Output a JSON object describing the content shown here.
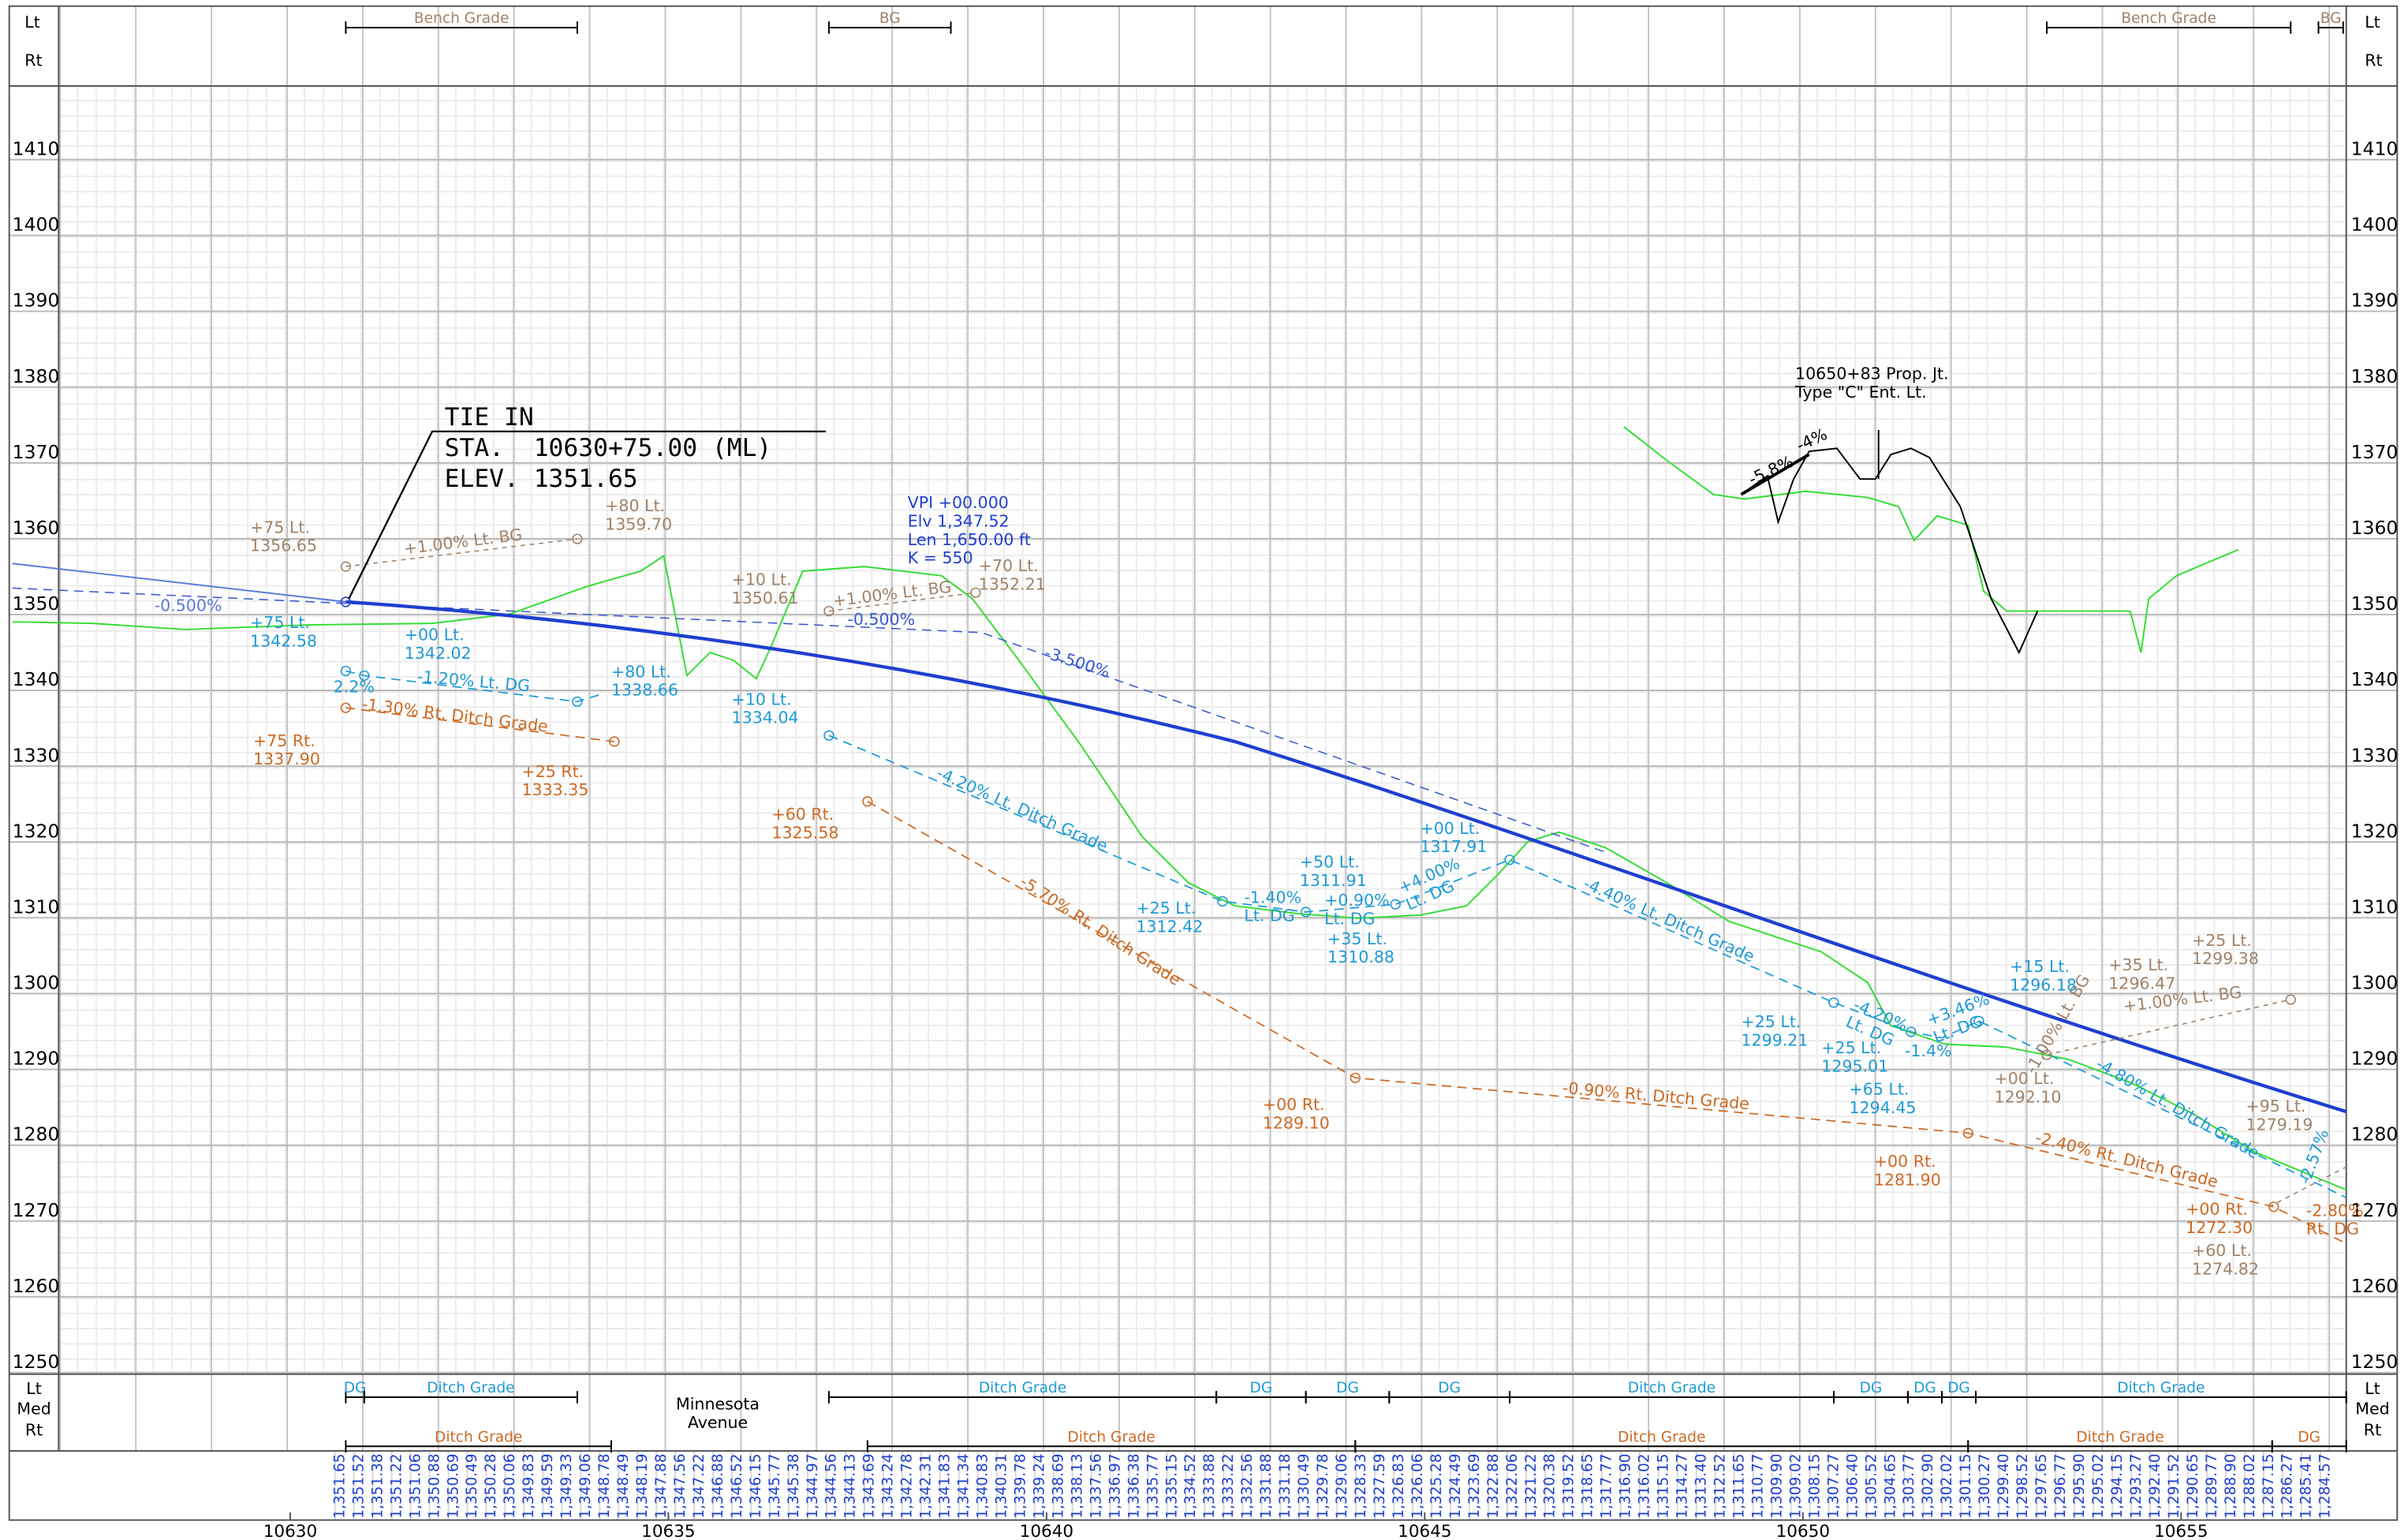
{
  "axis": {
    "elevations": [
      1410,
      1400,
      1390,
      1380,
      1370,
      1360,
      1350,
      1340,
      1330,
      1320,
      1310,
      1300,
      1290,
      1280,
      1270,
      1260,
      1250
    ],
    "stations": [
      10630,
      10635,
      10640,
      10645,
      10650,
      10655
    ]
  },
  "top_band": {
    "side": [
      "Lt",
      "Rt"
    ],
    "labels": [
      "Bench Grade",
      "BG",
      "Bench Grade",
      "BG"
    ],
    "color": "#a0826a"
  },
  "bottom_band": {
    "side": [
      "Lt",
      "Med",
      "Rt"
    ],
    "lt_labels": [
      "DG",
      "Ditch Grade",
      "Ditch Grade",
      "DG",
      "DG",
      "DG",
      "Ditch Grade",
      "DG",
      "DG",
      "DG",
      "Ditch Grade"
    ],
    "lt_color": "#1f9ad6",
    "rt_labels": [
      "Ditch Grade",
      "Ditch Grade",
      "Ditch Grade",
      "Ditch Grade",
      "DG"
    ],
    "rt_color": "#cc6a24"
  },
  "street": [
    "Minnesota",
    "Avenue"
  ],
  "tie_in": [
    "TIE IN",
    "STA.  10630+75.00 (ML)",
    "ELEV. 1351.65"
  ],
  "annotations": [
    {
      "lines": [
        "+75 Lt.",
        "1356.65"
      ],
      "color": "#a0826a"
    },
    {
      "lines": [
        "+80 Lt.",
        "1359.70"
      ],
      "color": "#a0826a"
    },
    {
      "lines": [
        "+1.00% Lt. BG"
      ],
      "color": "#a0826a"
    },
    {
      "lines": [
        "+10 Lt.",
        "1350.61"
      ],
      "color": "#a0826a"
    },
    {
      "lines": [
        "+1.00% Lt. BG"
      ],
      "color": "#a0826a"
    },
    {
      "lines": [
        "+70 Lt.",
        "1352.21"
      ],
      "color": "#a0826a"
    },
    {
      "lines": [
        "+35 Lt.",
        "1296.47"
      ],
      "color": "#a0826a"
    },
    {
      "lines": [
        "+25 Lt.",
        "1299.38"
      ],
      "color": "#a0826a"
    },
    {
      "lines": [
        "+1.00% Lt. BG"
      ],
      "color": "#a0826a"
    },
    {
      "lines": [
        "+00 Lt.",
        "1292.10"
      ],
      "color": "#a0826a"
    },
    {
      "lines": [
        "+95 Lt.",
        "1279.19"
      ],
      "color": "#a0826a"
    },
    {
      "lines": [
        "+60 Lt.",
        "1274.82"
      ],
      "color": "#a0826a"
    },
    {
      "lines": [
        "-1.00% Lt. BG"
      ],
      "color": "#a0826a"
    },
    {
      "lines": [
        "-0.500%"
      ],
      "color": "#5a7ad6"
    },
    {
      "lines": [
        "-0.500%"
      ],
      "color": "#3a5ad0"
    },
    {
      "lines": [
        "-3.500%"
      ],
      "color": "#3a5ad0"
    },
    {
      "lines": [
        "+75 Lt.",
        "1342.58"
      ],
      "color": "#1f9ad6"
    },
    {
      "lines": [
        "+00 Lt.",
        "1342.02"
      ],
      "color": "#1f9ad6"
    },
    {
      "lines": [
        "-1.20% Lt. DG"
      ],
      "color": "#1f9ad6"
    },
    {
      "lines": [
        "2.2%"
      ],
      "color": "#1f9ad6"
    },
    {
      "lines": [
        "+80 Lt.",
        "1338.66"
      ],
      "color": "#1f9ad6"
    },
    {
      "lines": [
        "+10 Lt.",
        "1334.04"
      ],
      "color": "#1f9ad6"
    },
    {
      "lines": [
        "-4.20% Lt. Ditch Grade"
      ],
      "color": "#1f9ad6"
    },
    {
      "lines": [
        "+25 Lt.",
        "1312.42"
      ],
      "color": "#1f9ad6"
    },
    {
      "lines": [
        "-1.40%",
        "Lt. DG"
      ],
      "color": "#1f9ad6"
    },
    {
      "lines": [
        "+50 Lt.",
        "1311.91"
      ],
      "color": "#1f9ad6"
    },
    {
      "lines": [
        "+0.90%",
        "Lt. DG"
      ],
      "color": "#1f9ad6"
    },
    {
      "lines": [
        "+35 Lt.",
        "1310.88"
      ],
      "color": "#1f9ad6"
    },
    {
      "lines": [
        "+4.00%",
        "Lt. DG"
      ],
      "color": "#1f9ad6"
    },
    {
      "lines": [
        "+00 Lt.",
        "1317.91"
      ],
      "color": "#1f9ad6"
    },
    {
      "lines": [
        "-4.40% Lt. Ditch Grade"
      ],
      "color": "#1f9ad6"
    },
    {
      "lines": [
        "+25 Lt.",
        "1299.21"
      ],
      "color": "#1f9ad6"
    },
    {
      "lines": [
        "+25 Lt.",
        "1295.01"
      ],
      "color": "#1f9ad6"
    },
    {
      "lines": [
        "-4.20%",
        "Lt. DG"
      ],
      "color": "#1f9ad6"
    },
    {
      "lines": [
        "+65 Lt.",
        "1294.45"
      ],
      "color": "#1f9ad6"
    },
    {
      "lines": [
        "-1.4%"
      ],
      "color": "#1f9ad6"
    },
    {
      "lines": [
        "+3.46%",
        "Lt. DG"
      ],
      "color": "#1f9ad6"
    },
    {
      "lines": [
        "+15 Lt.",
        "1296.18"
      ],
      "color": "#1f9ad6"
    },
    {
      "lines": [
        "-4.80% Lt. Ditch Grade"
      ],
      "color": "#1f9ad6"
    },
    {
      "lines": [
        "-2.57%"
      ],
      "color": "#1f9ad6"
    },
    {
      "lines": [
        "+75 Rt.",
        "1337.90"
      ],
      "color": "#cc6a24"
    },
    {
      "lines": [
        "-1.30% Rt. Ditch Grade"
      ],
      "color": "#cc6a24"
    },
    {
      "lines": [
        "+25 Rt.",
        "1333.35"
      ],
      "color": "#cc6a24"
    },
    {
      "lines": [
        "+60 Rt.",
        "1325.58"
      ],
      "color": "#cc6a24"
    },
    {
      "lines": [
        "-5.70% Rt. Ditch Grade"
      ],
      "color": "#cc6a24"
    },
    {
      "lines": [
        "+00 Rt.",
        "1289.10"
      ],
      "color": "#cc6a24"
    },
    {
      "lines": [
        "-0.90% Rt. Ditch Grade"
      ],
      "color": "#cc6a24"
    },
    {
      "lines": [
        "+00 Rt.",
        "1281.90"
      ],
      "color": "#cc6a24"
    },
    {
      "lines": [
        "-2.40% Rt. Ditch Grade"
      ],
      "color": "#cc6a24"
    },
    {
      "lines": [
        "+00 Rt.",
        "1272.30"
      ],
      "color": "#cc6a24"
    },
    {
      "lines": [
        "-2.80%",
        "Rt. DG"
      ],
      "color": "#cc6a24"
    },
    {
      "lines": [
        "-5.8%"
      ],
      "color": "#000000"
    },
    {
      "lines": [
        "-4%"
      ],
      "color": "#000000"
    },
    {
      "lines": [
        "10650+83 Prop. Jt.",
        "Type \"C\" Ent. Lt."
      ],
      "color": "#000000"
    },
    {
      "lines": [
        "VPI +00.000",
        "Elv 1,347.52",
        "Len 1,650.00 ft",
        "K = 550"
      ],
      "color": "#1f3fd0"
    }
  ],
  "profile_elevations": {
    "color": "#1f3fd0",
    "labels": [
      "1,351.65",
      "1,351.52",
      "1,351.38",
      "1,351.22",
      "1,351.06",
      "1,350.88",
      "1,350.69",
      "1,350.49",
      "1,350.28",
      "1,350.06",
      "1,349.83",
      "1,349.59",
      "1,349.33",
      "1,349.06",
      "1,348.78",
      "1,348.49",
      "1,348.19",
      "1,347.88",
      "1,347.56",
      "1,347.22",
      "1,346.88",
      "1,346.52",
      "1,346.15",
      "1,345.77",
      "1,345.38",
      "1,344.97",
      "1,344.56",
      "1,344.13",
      "1,343.69",
      "1,343.24",
      "1,342.78",
      "1,342.31",
      "1,341.83",
      "1,341.34",
      "1,340.83",
      "1,340.31",
      "1,339.78",
      "1,339.24",
      "1,338.69",
      "1,338.13",
      "1,337.56",
      "1,336.97",
      "1,336.38",
      "1,335.77",
      "1,335.15",
      "1,334.52",
      "1,333.88",
      "1,333.22",
      "1,332.56",
      "1,331.88",
      "1,331.18",
      "1,330.49",
      "1,329.78",
      "1,329.06",
      "1,328.33",
      "1,327.59",
      "1,326.83",
      "1,326.06",
      "1,325.28",
      "1,324.49",
      "1,323.69",
      "1,322.88",
      "1,322.06",
      "1,321.22",
      "1,320.38",
      "1,319.52",
      "1,318.65",
      "1,317.77",
      "1,316.90",
      "1,316.02",
      "1,315.15",
      "1,314.27",
      "1,313.40",
      "1,312.52",
      "1,311.65",
      "1,310.77",
      "1,309.90",
      "1,309.02",
      "1,308.15",
      "1,307.27",
      "1,306.40",
      "1,305.52",
      "1,304.65",
      "1,303.77",
      "1,302.90",
      "1,302.02",
      "1,301.15",
      "1,300.27",
      "1,299.40",
      "1,298.52",
      "1,297.65",
      "1,296.77",
      "1,295.90",
      "1,295.02",
      "1,294.15",
      "1,293.27",
      "1,292.40",
      "1,291.52",
      "1,290.65",
      "1,289.77",
      "1,288.90",
      "1,288.02",
      "1,287.15",
      "1,286.27",
      "1,285.41",
      "1,284.57"
    ]
  }
}
